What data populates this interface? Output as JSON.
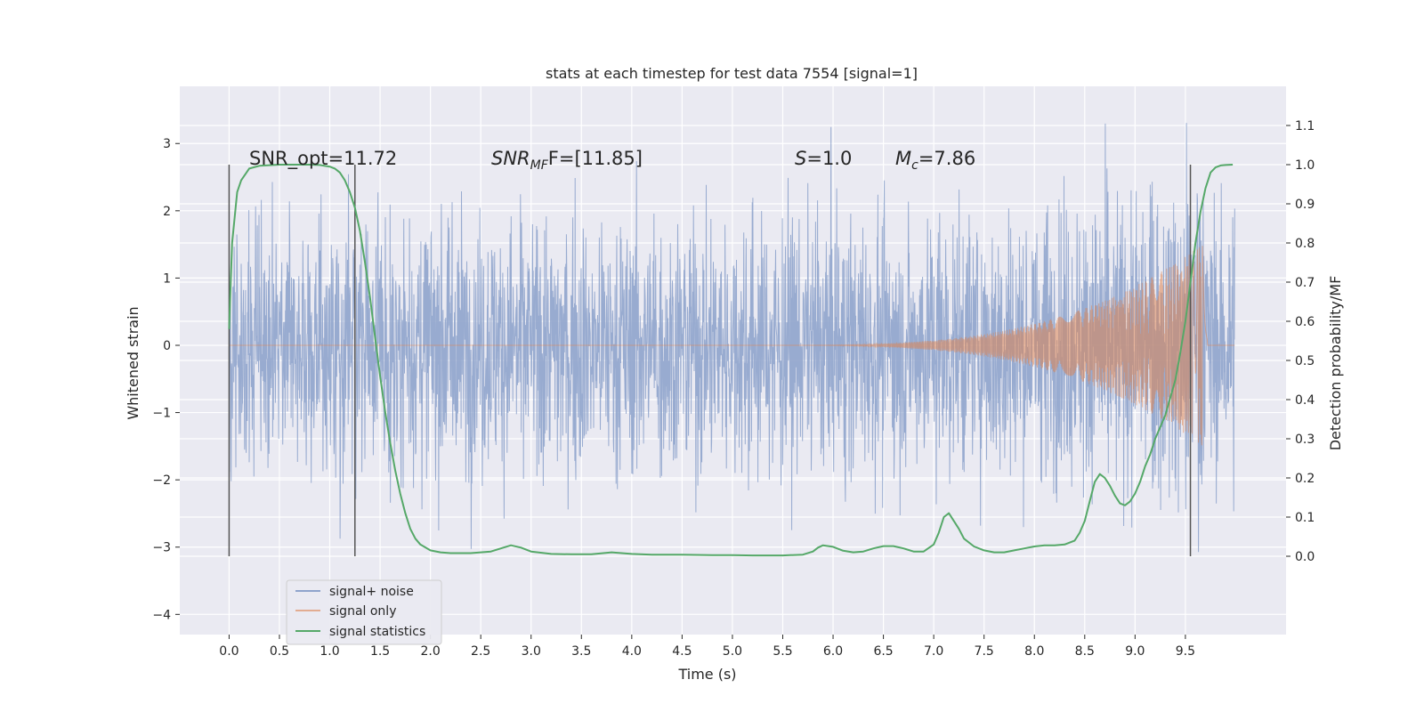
{
  "chart_data": {
    "type": "line",
    "title": "stats at each timestep for test data 7554 [signal=1]",
    "xlabel": "Time (s)",
    "ylabel_left": "Whitened strain",
    "ylabel_right": "Detection probability/MF",
    "xlim": [
      -0.49,
      10.5
    ],
    "ylim_left": [
      -4.3,
      3.85
    ],
    "ylim_right": [
      -0.2,
      1.2
    ],
    "xticks": [
      "0.0",
      "0.5",
      "1.0",
      "1.5",
      "2.0",
      "2.5",
      "3.0",
      "3.5",
      "4.0",
      "4.5",
      "5.0",
      "5.5",
      "6.0",
      "6.5",
      "7.0",
      "7.5",
      "8.0",
      "8.5",
      "9.0",
      "9.5"
    ],
    "yticks_left": [
      "3",
      "2",
      "1",
      "0",
      "−1",
      "−2",
      "−3",
      "−4"
    ],
    "yticks_right": [
      "1.1",
      "1.0",
      "0.9",
      "0.8",
      "0.7",
      "0.6",
      "0.5",
      "0.4",
      "0.3",
      "0.2",
      "0.1",
      "0.0"
    ],
    "grid": true,
    "legend_position": "bottom-left",
    "annotations": {
      "snr_opt": "SNR_opt=11.72",
      "snr_mf_main": "SNR",
      "snr_mf_sub": "MF",
      "snr_mf_tail": "F=[11.85]",
      "s_main": "S",
      "s_tail": "=1.0",
      "mc_main": "M",
      "mc_sub": "c",
      "mc_tail": "=7.86"
    },
    "vertical_lines_x": [
      0.0,
      1.25,
      9.55
    ],
    "series": [
      {
        "name": "signal+ noise",
        "color": "#8fa4cc",
        "x_range": [
          0.0,
          9.99
        ],
        "noise_std": 0.95
      },
      {
        "name": "signal only",
        "color": "#dd8452",
        "chirp_start": 5.3,
        "chirp_merger": 9.67,
        "peak_amplitude": 1.5
      },
      {
        "name": "signal statistics",
        "color": "#55a868",
        "axis": "right",
        "x": [
          0.0,
          0.03,
          0.08,
          0.12,
          0.2,
          0.3,
          0.5,
          0.8,
          0.9,
          1.0,
          1.05,
          1.1,
          1.15,
          1.2,
          1.25,
          1.3,
          1.35,
          1.4,
          1.45,
          1.5,
          1.55,
          1.6,
          1.65,
          1.7,
          1.75,
          1.8,
          1.85,
          1.9,
          2.0,
          2.1,
          2.2,
          2.4,
          2.6,
          2.7,
          2.8,
          2.9,
          3.0,
          3.2,
          3.4,
          3.6,
          3.8,
          4.0,
          4.2,
          4.5,
          4.8,
          5.0,
          5.2,
          5.5,
          5.7,
          5.8,
          5.85,
          5.9,
          6.0,
          6.1,
          6.2,
          6.3,
          6.4,
          6.5,
          6.6,
          6.7,
          6.8,
          6.9,
          7.0,
          7.05,
          7.1,
          7.15,
          7.2,
          7.25,
          7.3,
          7.4,
          7.5,
          7.6,
          7.7,
          7.8,
          7.9,
          8.0,
          8.1,
          8.2,
          8.3,
          8.4,
          8.45,
          8.5,
          8.55,
          8.6,
          8.65,
          8.7,
          8.75,
          8.8,
          8.85,
          8.9,
          8.95,
          9.0,
          9.05,
          9.1,
          9.15,
          9.2,
          9.3,
          9.4,
          9.45,
          9.5,
          9.55,
          9.6,
          9.65,
          9.7,
          9.75,
          9.8,
          9.85,
          9.9,
          9.97
        ],
        "y": [
          0.58,
          0.8,
          0.93,
          0.96,
          0.99,
          0.997,
          1.0,
          1.0,
          0.999,
          0.995,
          0.99,
          0.98,
          0.96,
          0.93,
          0.89,
          0.83,
          0.75,
          0.66,
          0.56,
          0.46,
          0.37,
          0.29,
          0.22,
          0.16,
          0.11,
          0.07,
          0.045,
          0.03,
          0.015,
          0.01,
          0.008,
          0.008,
          0.012,
          0.02,
          0.028,
          0.022,
          0.012,
          0.006,
          0.005,
          0.005,
          0.01,
          0.006,
          0.004,
          0.004,
          0.003,
          0.003,
          0.002,
          0.002,
          0.004,
          0.012,
          0.022,
          0.028,
          0.024,
          0.014,
          0.01,
          0.012,
          0.02,
          0.026,
          0.026,
          0.02,
          0.012,
          0.012,
          0.03,
          0.06,
          0.1,
          0.11,
          0.09,
          0.07,
          0.045,
          0.025,
          0.015,
          0.01,
          0.01,
          0.015,
          0.02,
          0.025,
          0.028,
          0.028,
          0.03,
          0.04,
          0.06,
          0.09,
          0.14,
          0.19,
          0.21,
          0.2,
          0.18,
          0.155,
          0.135,
          0.13,
          0.14,
          0.16,
          0.19,
          0.23,
          0.26,
          0.3,
          0.36,
          0.45,
          0.52,
          0.6,
          0.7,
          0.8,
          0.88,
          0.94,
          0.98,
          0.993,
          0.998,
          0.999,
          1.0
        ]
      }
    ]
  }
}
